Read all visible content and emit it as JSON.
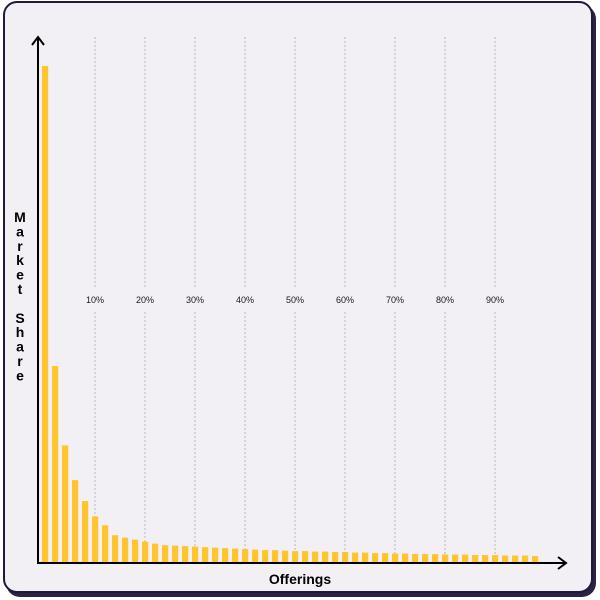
{
  "chart_data": {
    "type": "bar",
    "title": "",
    "xlabel": "Offerings",
    "ylabel": "Market Share",
    "bar_color": "#ffc52e",
    "gridline_color": "#b8b4c0",
    "axis_color": "#000000",
    "card_background": "#f2eff5",
    "card_border": "#1f1a38",
    "grid": "vertical dotted lines at percentile positions",
    "percentile_ticks": [
      "10%",
      "20%",
      "30%",
      "40%",
      "50%",
      "60%",
      "70%",
      "80%",
      "90%"
    ],
    "values": [
      100,
      39.5,
      23.5,
      16.5,
      12.3,
      9.2,
      7.4,
      5.4,
      4.9,
      4.5,
      4.1,
      3.7,
      3.4,
      3.3,
      3.2,
      3.1,
      3.0,
      2.9,
      2.8,
      2.7,
      2.6,
      2.5,
      2.4,
      2.4,
      2.3,
      2.2,
      2.2,
      2.1,
      2.1,
      2.0,
      2.0,
      1.9,
      1.9,
      1.8,
      1.8,
      1.7,
      1.7,
      1.6,
      1.6,
      1.6,
      1.5,
      1.5,
      1.5,
      1.4,
      1.4,
      1.4,
      1.3,
      1.3,
      1.3,
      1.2
    ],
    "ylim": [
      0,
      110
    ]
  }
}
